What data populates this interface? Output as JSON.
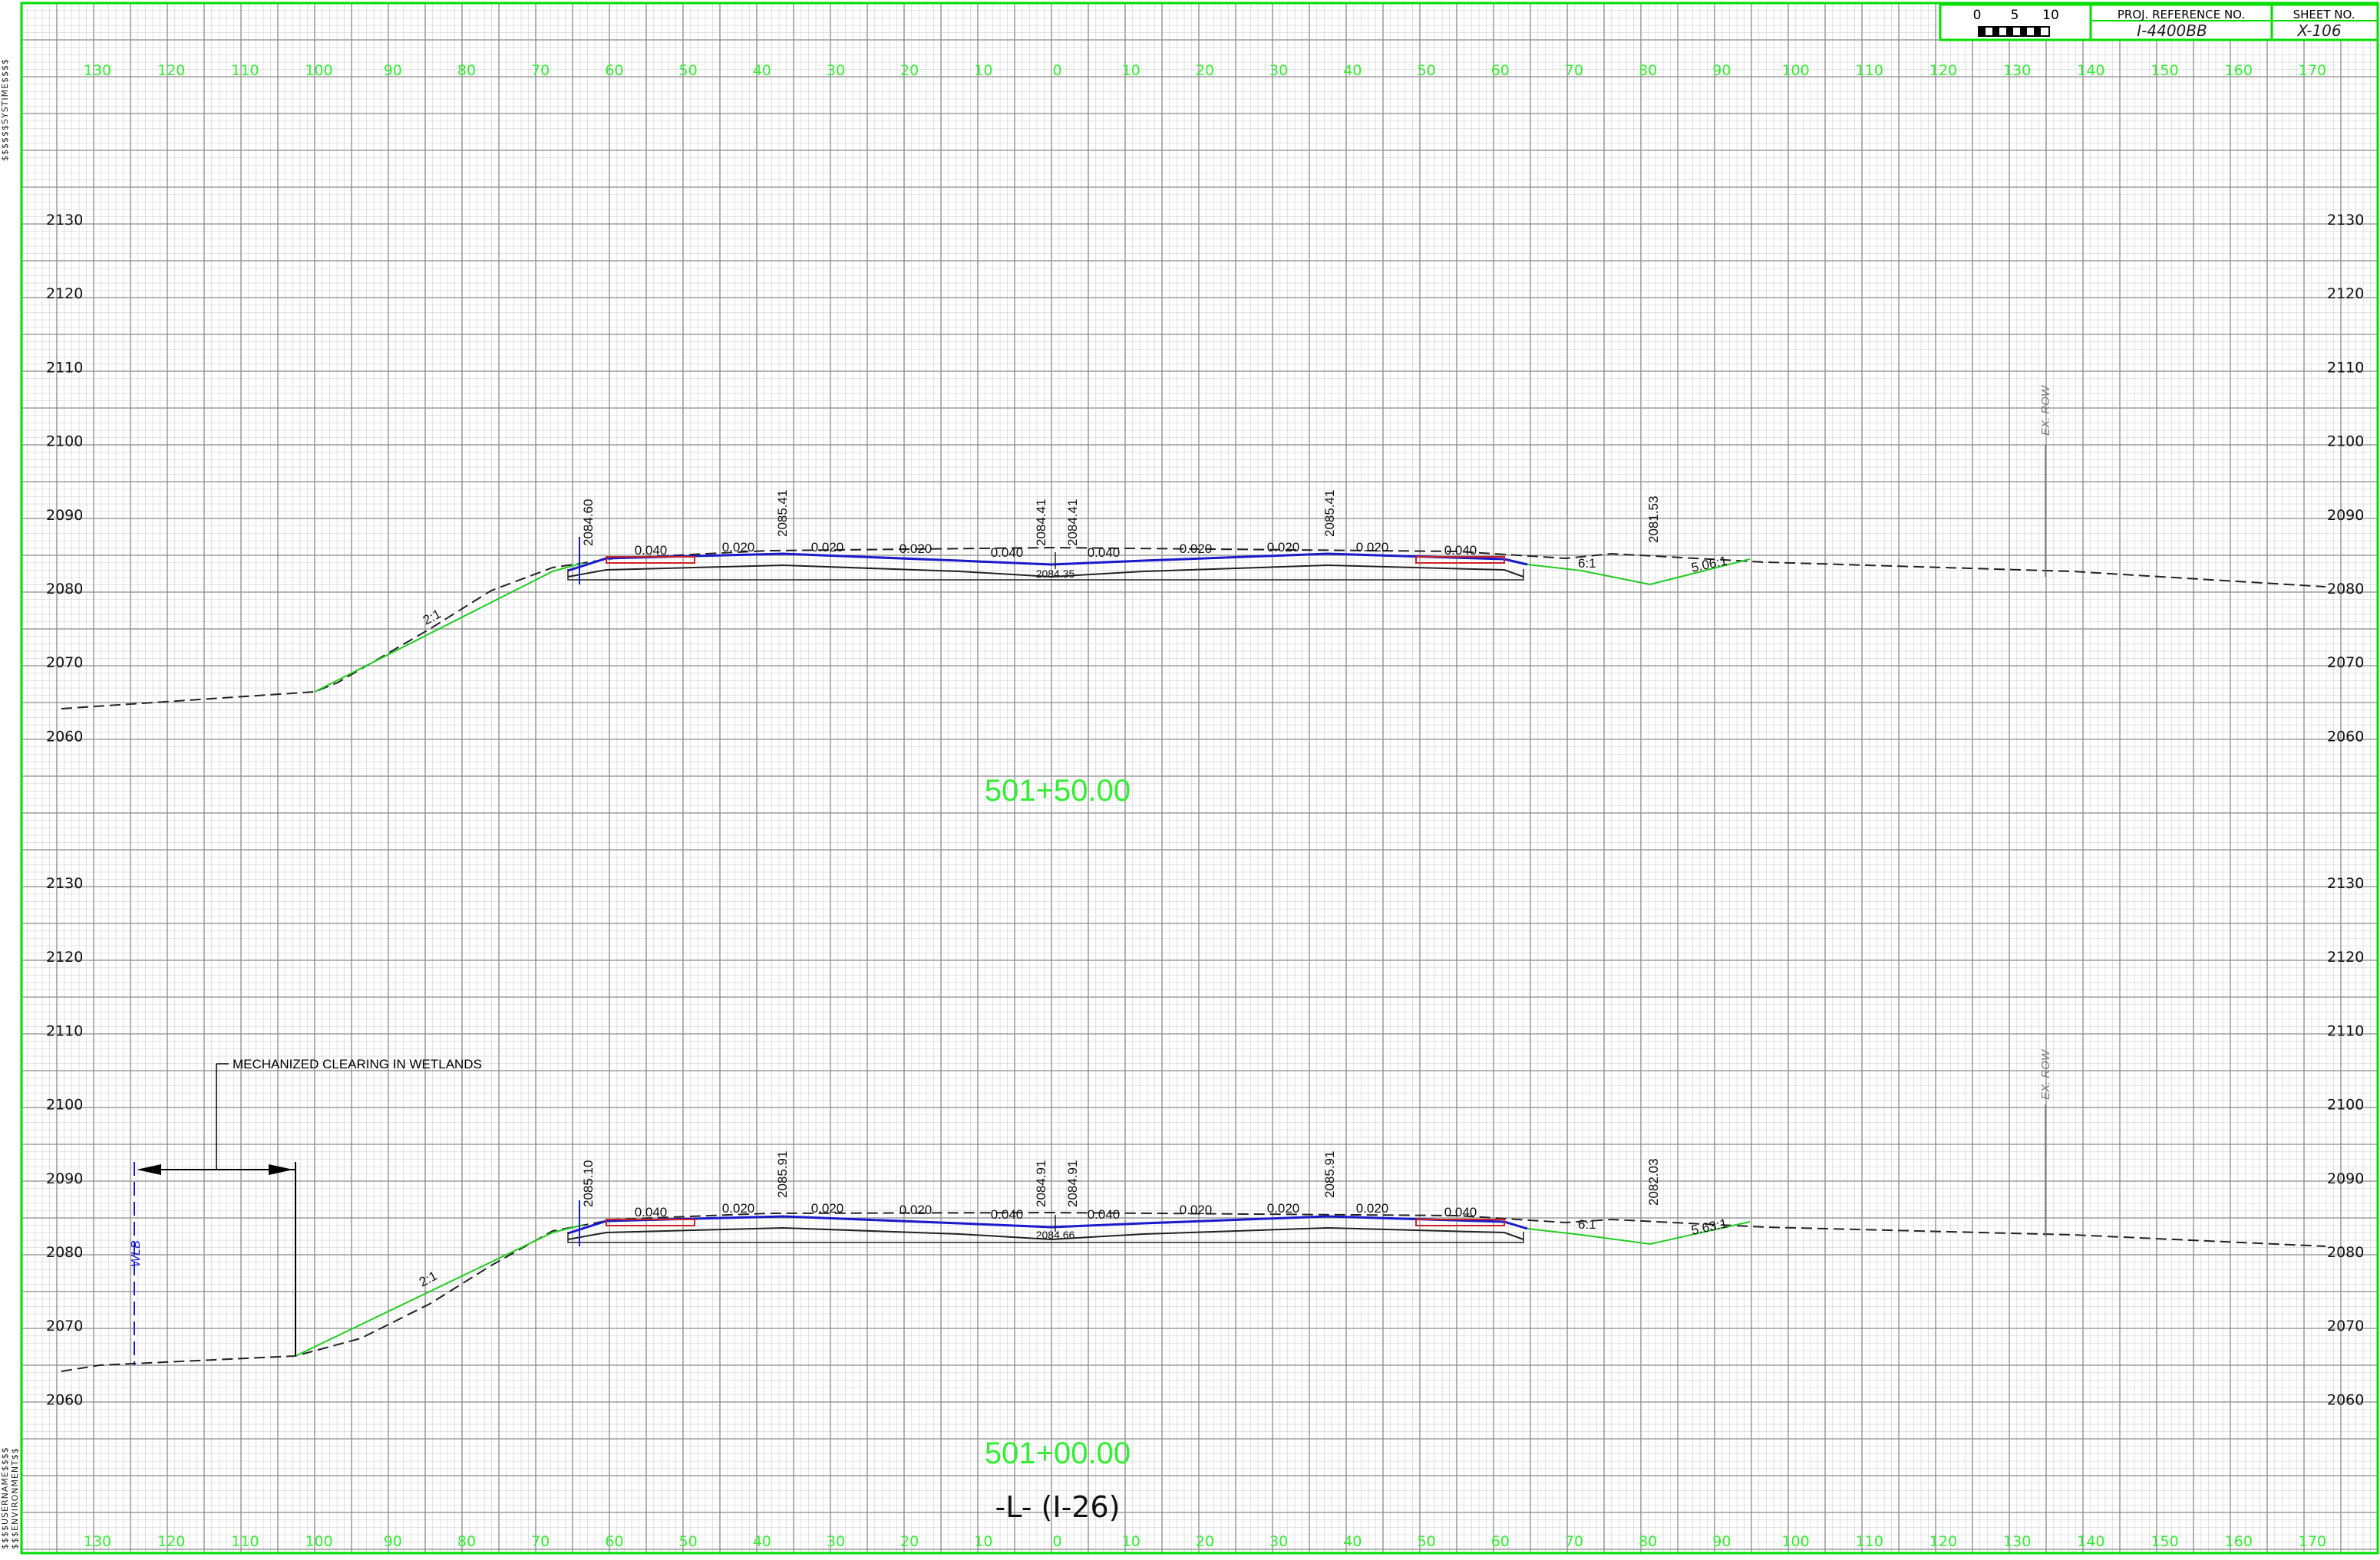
{
  "title_block": {
    "scale_labels": [
      "0",
      "5",
      "10"
    ],
    "proj_ref_label": "PROJ. REFERENCE NO.",
    "proj_ref_value": "I-4400BB",
    "sheet_no_label": "SHEET NO.",
    "sheet_no_value": "X-106"
  },
  "margin_text": {
    "top": "$$$$$$SYSTIME$$$$",
    "bottom": "$$$$USERNAME$$$$ $$$ENVIRONMENT$$"
  },
  "offset_labels": [
    "130",
    "120",
    "110",
    "100",
    "90",
    "80",
    "70",
    "60",
    "50",
    "40",
    "30",
    "20",
    "10",
    "0",
    "10",
    "20",
    "30",
    "40",
    "50",
    "60",
    "70",
    "80",
    "90",
    "100",
    "110",
    "120",
    "130",
    "140",
    "150",
    "160",
    "170"
  ],
  "colors": {
    "grid": "#9a9a9a",
    "border": "#00dd00",
    "station": "#33ee33",
    "design_line": "#22cc22",
    "pavement": "#1a1acc",
    "existing_ground": "#222222",
    "text": "#111111"
  },
  "sections": [
    {
      "station": "501+50.00",
      "elevation_labels": [
        "2130",
        "2120",
        "2110",
        "2100",
        "2090",
        "2080",
        "2070",
        "2060"
      ],
      "elevation_values": [
        2130,
        2120,
        2110,
        2100,
        2090,
        2080,
        2070,
        2060
      ],
      "grade_labels": [
        "2084.60",
        "2085.41",
        "2084.41",
        "2084.41",
        "2085.41",
        "2081.53"
      ],
      "center_elev": "2084.35",
      "slope_labels": [
        "0.040",
        "0.020",
        "0.020",
        "0.020",
        "0.040",
        "0.040",
        "0.020",
        "0.020",
        "0.020",
        "0.040"
      ],
      "side_slopes": [
        "2:1",
        "6:1",
        "5.06:1"
      ],
      "row_label": "EX. ROW"
    },
    {
      "station": "501+00.00",
      "elevation_labels": [
        "2130",
        "2120",
        "2110",
        "2100",
        "2090",
        "2080",
        "2070",
        "2060"
      ],
      "elevation_values": [
        2130,
        2120,
        2110,
        2100,
        2090,
        2080,
        2070,
        2060
      ],
      "grade_labels": [
        "2085.10",
        "2085.91",
        "2084.91",
        "2084.91",
        "2085.91",
        "2082.03"
      ],
      "center_elev": "2084.66",
      "slope_labels": [
        "0.040",
        "0.020",
        "0.020",
        "0.020",
        "0.040",
        "0.040",
        "0.020",
        "0.020",
        "0.020",
        "0.040"
      ],
      "side_slopes": [
        "2:1",
        "6:1",
        "5.63:1"
      ],
      "row_label": "EX. ROW",
      "wlb_label": "WLB",
      "note": "MECHANIZED CLEARING IN WETLANDS"
    }
  ],
  "alignment_label": "-L- (I-26)"
}
